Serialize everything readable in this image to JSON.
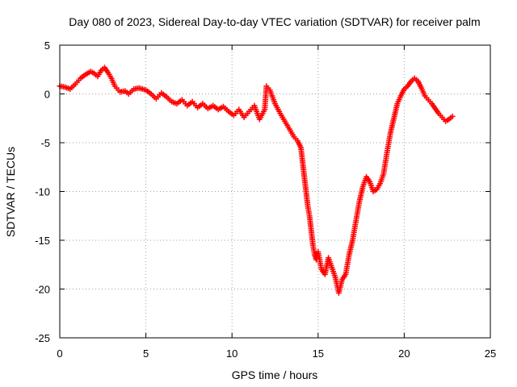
{
  "chart_data": {
    "type": "scatter",
    "title": "Day 080 of 2023, Sidereal Day-to-day VTEC variation (SDTVAR) for receiver palm",
    "xlabel": "GPS time / hours",
    "ylabel": "SDTVAR / TECUs",
    "xlim": [
      0,
      25
    ],
    "ylim": [
      -25,
      5
    ],
    "x_ticks": [
      0,
      5,
      10,
      15,
      20,
      25
    ],
    "x_tick_labels": [
      "0",
      "5",
      "10",
      "15",
      "20",
      "25"
    ],
    "y_ticks": [
      5,
      0,
      -5,
      -10,
      -15,
      -20,
      -25
    ],
    "y_tick_labels": [
      "5",
      "0",
      "-5",
      "-10",
      "-15",
      "-20",
      "-25"
    ],
    "grid": true,
    "marker": "plus",
    "color": "#ff0000",
    "series": [
      {
        "name": "SDTVAR",
        "x": [
          0.0,
          0.3,
          0.6,
          0.9,
          1.2,
          1.5,
          1.8,
          2.0,
          2.2,
          2.4,
          2.6,
          2.8,
          3.0,
          3.2,
          3.5,
          3.8,
          4.0,
          4.3,
          4.6,
          5.0,
          5.3,
          5.6,
          5.9,
          6.2,
          6.5,
          6.8,
          7.1,
          7.4,
          7.7,
          8.0,
          8.3,
          8.6,
          8.9,
          9.2,
          9.5,
          9.8,
          10.1,
          10.4,
          10.7,
          11.0,
          11.3,
          11.6,
          11.9,
          12.0,
          12.2,
          12.5,
          12.8,
          13.0,
          13.2,
          13.4,
          13.6,
          13.8,
          14.0,
          14.1,
          14.2,
          14.3,
          14.4,
          14.5,
          14.6,
          14.7,
          14.8,
          14.9,
          15.0,
          15.2,
          15.4,
          15.6,
          15.8,
          16.0,
          16.2,
          16.4,
          16.6,
          16.8,
          17.0,
          17.2,
          17.4,
          17.6,
          17.8,
          18.0,
          18.2,
          18.4,
          18.6,
          18.8,
          19.0,
          19.2,
          19.4,
          19.6,
          19.8,
          20.0,
          20.2,
          20.4,
          20.6,
          20.8,
          21.0,
          21.2,
          21.4,
          21.6,
          21.8,
          22.0,
          22.2,
          22.4,
          22.6,
          22.8
        ],
        "y": [
          0.8,
          0.7,
          0.5,
          1.0,
          1.6,
          2.0,
          2.3,
          2.1,
          1.8,
          2.4,
          2.7,
          2.2,
          1.6,
          0.8,
          0.2,
          0.3,
          0.0,
          0.5,
          0.6,
          0.4,
          0.0,
          -0.5,
          0.1,
          -0.3,
          -0.8,
          -1.0,
          -0.6,
          -1.2,
          -0.8,
          -1.4,
          -1.0,
          -1.5,
          -1.2,
          -1.6,
          -1.3,
          -1.8,
          -2.2,
          -1.6,
          -2.4,
          -1.8,
          -1.2,
          -2.6,
          -1.6,
          0.8,
          0.4,
          -1.0,
          -2.0,
          -2.6,
          -3.2,
          -3.8,
          -4.4,
          -4.8,
          -5.5,
          -7.0,
          -8.5,
          -10.0,
          -11.5,
          -12.5,
          -14.0,
          -15.5,
          -16.5,
          -17.0,
          -16.2,
          -18.0,
          -18.5,
          -16.8,
          -17.8,
          -18.8,
          -20.4,
          -19.0,
          -18.5,
          -16.5,
          -15.0,
          -13.0,
          -11.0,
          -9.5,
          -8.5,
          -9.0,
          -10.0,
          -9.8,
          -9.2,
          -8.2,
          -6.0,
          -4.0,
          -2.5,
          -1.0,
          -0.2,
          0.5,
          0.8,
          1.3,
          1.6,
          1.3,
          0.6,
          -0.2,
          -0.6,
          -1.0,
          -1.5,
          -2.0,
          -2.4,
          -2.8,
          -2.6,
          -2.3
        ]
      }
    ]
  }
}
